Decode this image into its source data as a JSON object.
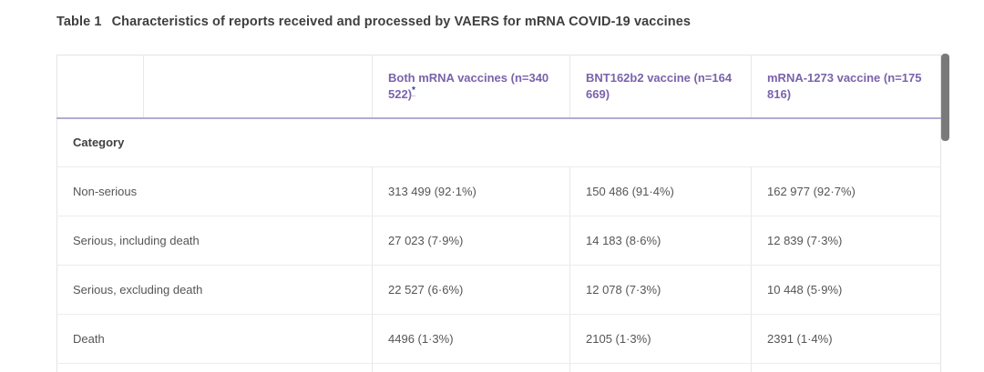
{
  "caption": {
    "label": "Table 1",
    "text": "Characteristics of reports received and processed by VAERS for mRNA COVID-19 vaccines"
  },
  "table": {
    "columns": [
      {
        "label": "Both mRNA vaccines (n=340 522)",
        "footnote_marker": "*"
      },
      {
        "label": "BNT162b2 vaccine (n=164 669)",
        "footnote_marker": ""
      },
      {
        "label": "mRNA-1273 vaccine (n=175 816)",
        "footnote_marker": ""
      }
    ],
    "section_header": "Category",
    "rows": [
      {
        "label": "Non-serious",
        "values": [
          "313 499 (92·1%)",
          "150 486 (91·4%)",
          "162 977 (92·7%)"
        ]
      },
      {
        "label": "Serious, including death",
        "values": [
          "27 023 (7·9%)",
          "14 183 (8·6%)",
          "12 839 (7·3%)"
        ]
      },
      {
        "label": "Serious, excluding death",
        "values": [
          "22 527 (6·6%)",
          "12 078 (7·3%)",
          "10 448 (5·9%)"
        ]
      },
      {
        "label": "Death",
        "values": [
          "4496 (1·3%)",
          "2105 (1·3%)",
          "2391 (1·4%)"
        ]
      }
    ]
  },
  "colors": {
    "header_text": "#7a63ab",
    "header_rule": "#b5abd2",
    "footnote_marker": "#2d3d99",
    "body_text": "#555555",
    "caption_text": "#3f3f3f",
    "row_rule": "#ececec",
    "scrollbar_thumb": "#7a7a7a"
  }
}
